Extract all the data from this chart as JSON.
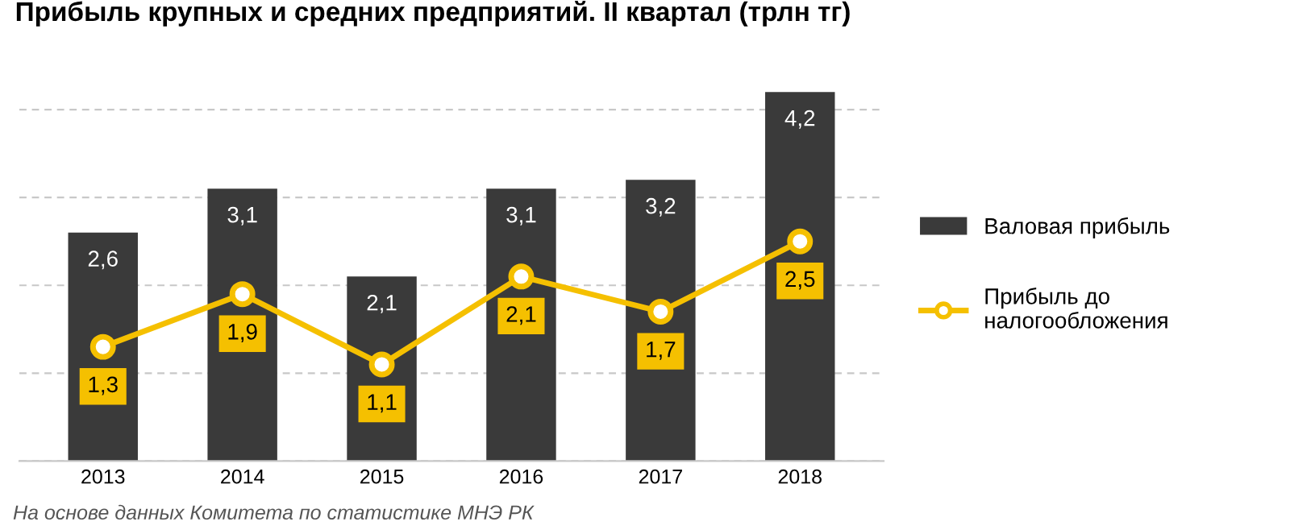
{
  "chart_data": {
    "type": "bar",
    "title": "Прибыль крупных и средних предприятий. II квартал (трлн тг)",
    "categories": [
      "2013",
      "2014",
      "2015",
      "2016",
      "2017",
      "2018"
    ],
    "series": [
      {
        "name": "Валовая прибыль",
        "color": "#3a3a3a",
        "values": [
          2.6,
          3.1,
          2.1,
          3.1,
          3.2,
          4.2
        ],
        "value_labels": [
          "2,6",
          "3,1",
          "2,1",
          "3,1",
          "3,2",
          "4,2"
        ]
      },
      {
        "name": "Прибыль до налогообложения",
        "type": "line",
        "color": "#f5c000",
        "values": [
          1.3,
          1.9,
          1.1,
          2.1,
          1.7,
          2.5
        ],
        "value_labels": [
          "1,3",
          "1,9",
          "1,1",
          "2,1",
          "1,7",
          "2,5"
        ],
        "marker": "circle",
        "line_style": "solid"
      }
    ],
    "grid": "y",
    "tick_labels": "x",
    "legend": "right",
    "annotations": [
      "На основе данных Комитета по статистике МНЭ РК"
    ]
  }
}
